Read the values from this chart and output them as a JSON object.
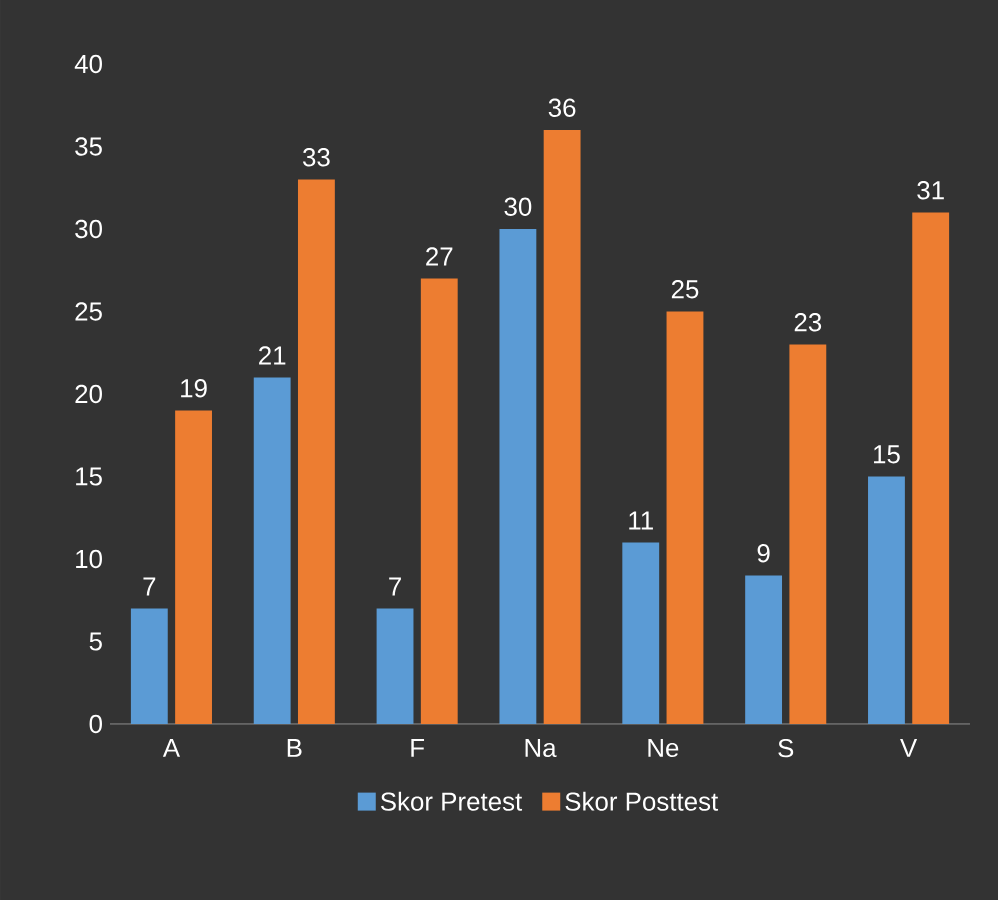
{
  "chart_data": {
    "type": "bar",
    "categories": [
      "A",
      "B",
      "F",
      "Na",
      "Ne",
      "S",
      "V"
    ],
    "series": [
      {
        "name": "Skor Pretest",
        "color": "#5b9bd5",
        "values": [
          7,
          21,
          7,
          30,
          11,
          9,
          15
        ]
      },
      {
        "name": "Skor Posttest",
        "color": "#ed7d31",
        "values": [
          19,
          33,
          27,
          36,
          25,
          23,
          31
        ]
      }
    ],
    "ylim": [
      0,
      40
    ],
    "yticks": [
      0,
      5,
      10,
      15,
      20,
      25,
      30,
      35,
      40
    ],
    "data_labels": true,
    "legend": "bottom",
    "grid": false
  }
}
